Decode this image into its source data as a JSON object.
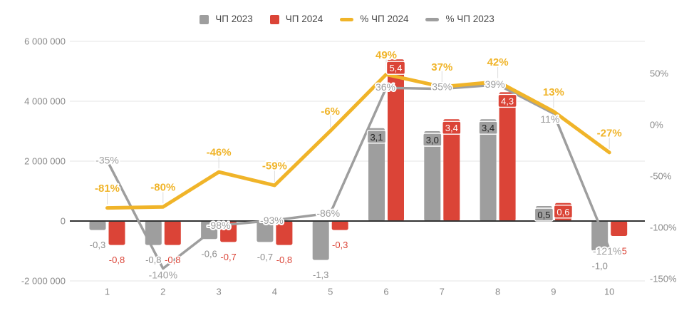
{
  "chart_data": {
    "type": "combo-bar-line",
    "title": "",
    "categories": [
      "1",
      "2",
      "3",
      "4",
      "5",
      "6",
      "7",
      "8",
      "9",
      "10"
    ],
    "legend": {
      "position": "top",
      "items": [
        {
          "label": "ЧП 2023",
          "swatch": "square",
          "color": "#9e9e9e"
        },
        {
          "label": "ЧП 2024",
          "swatch": "square",
          "color": "#db4437"
        },
        {
          "label": "% ЧП 2024",
          "swatch": "line",
          "color": "#f0b429"
        },
        {
          "label": "% ЧП 2023",
          "swatch": "line",
          "color": "#9e9e9e"
        }
      ]
    },
    "series": [
      {
        "key": "np2023",
        "name": "ЧП 2023",
        "type": "bar",
        "axis": "left",
        "color": "#9e9e9e",
        "values": [
          -0.3,
          -0.8,
          -0.6,
          -0.7,
          -1.3,
          3.1,
          3.0,
          3.4,
          0.5,
          -1.0
        ],
        "labels": [
          "-0,3",
          "-0,8",
          "-0,6",
          "-0,7",
          "-1,3",
          "3,1",
          "3,0",
          "3,4",
          "0,5",
          "-1,0"
        ],
        "value_unit": "millions"
      },
      {
        "key": "np2024",
        "name": "ЧП 2024",
        "type": "bar",
        "axis": "left",
        "color": "#db4437",
        "values": [
          -0.8,
          -0.8,
          -0.7,
          -0.8,
          -0.3,
          5.4,
          3.4,
          4.3,
          0.6,
          -0.5
        ],
        "labels": [
          "-0,8",
          "-0,8",
          "-0,7",
          "-0,8",
          "-0,3",
          "5,4",
          "3,4",
          "4,3",
          "0,6",
          "-0,5"
        ],
        "value_unit": "millions"
      },
      {
        "key": "pct-np2024",
        "name": "% ЧП 2024",
        "type": "line",
        "axis": "right",
        "color": "#f0b429",
        "values": [
          -81,
          -80,
          -46,
          -59,
          -6,
          49,
          37,
          42,
          13,
          -27
        ],
        "labels": [
          "-81%",
          "-80%",
          "-46%",
          "-59%",
          "-6%",
          "49%",
          "37%",
          "42%",
          "13%",
          "-27%"
        ]
      },
      {
        "key": "pct-np2023",
        "name": "% ЧП 2023",
        "type": "line",
        "axis": "right",
        "color": "#9e9e9e",
        "values": [
          -35,
          -140,
          -98,
          -93,
          -86,
          36,
          35,
          39,
          11,
          -121
        ],
        "labels": [
          "-35%",
          "-140%",
          "-98%",
          "-93%",
          "-86%",
          "36%",
          "35%",
          "39%",
          "11%",
          "-121%"
        ]
      }
    ],
    "left_axis": {
      "ticks": [
        "6 000 000",
        "4 000 000",
        "2 000 000",
        "0",
        "-2 000 000"
      ],
      "tick_values": [
        6000000,
        4000000,
        2000000,
        0,
        -2000000
      ],
      "range": [
        -2000000,
        6000000
      ]
    },
    "right_axis": {
      "ticks": [
        "50%",
        "0%",
        "-50%",
        "-100%",
        "-150%"
      ],
      "tick_values": [
        50,
        0,
        -50,
        -100,
        -150
      ],
      "range": [
        -150,
        50
      ]
    },
    "x_axis": {
      "tick_labels": [
        "1",
        "2",
        "3",
        "4",
        "5",
        "6",
        "7",
        "8",
        "9",
        "10"
      ]
    },
    "grid": "horizontal",
    "colors": {
      "bar_2023": "#9e9e9e",
      "bar_2024": "#db4437",
      "line_2024": "#f0b429",
      "line_2023": "#9e9e9e",
      "zero_line": "#333333",
      "gridline": "#e6e6e6",
      "axis_text": "#8a8a8a"
    }
  }
}
